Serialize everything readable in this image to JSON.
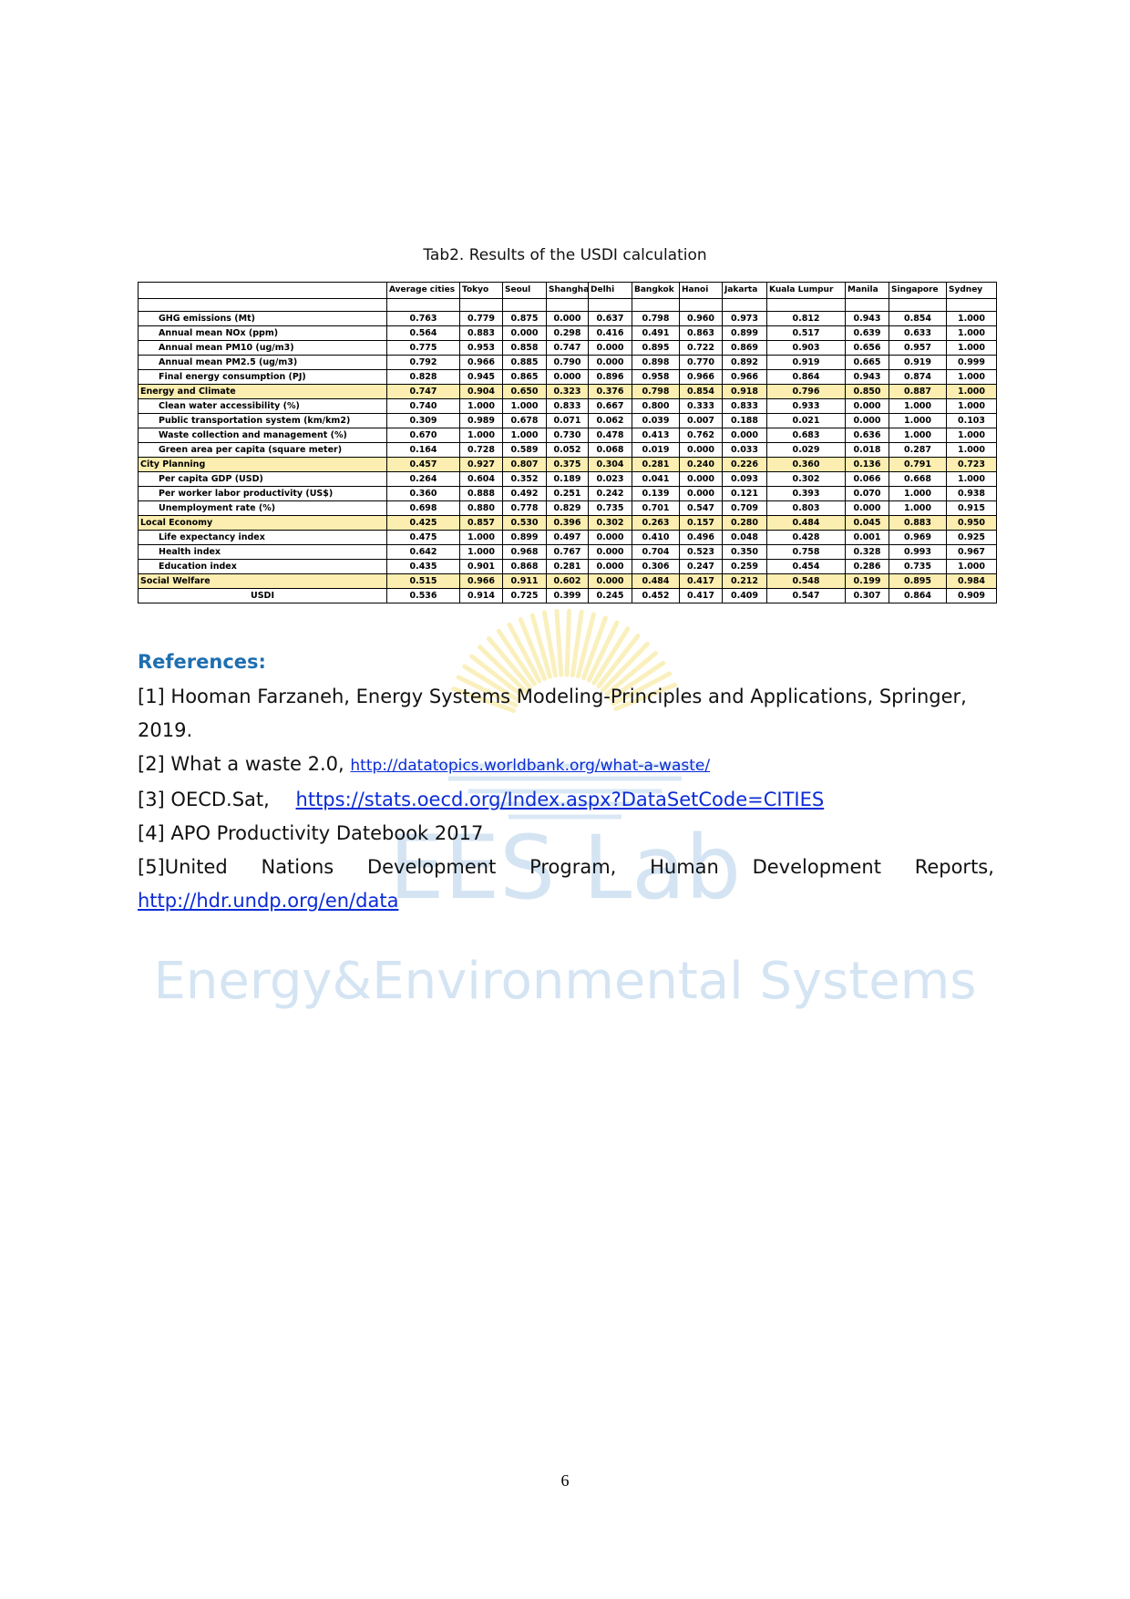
{
  "caption": "Tab2. Results of the USDI calculation",
  "table": {
    "headers": [
      "",
      "Average cities",
      "Tokyo",
      "Seoul",
      "Shanghai",
      "Delhi",
      "Bangkok",
      "Hanoi",
      "Jakarta",
      "Kuala Lumpur",
      "Manila",
      "Singapore",
      "Sydney"
    ],
    "rows": [
      {
        "type": "blank",
        "label": "",
        "values": [
          "",
          "",
          "",
          "",
          "",
          "",
          "",
          "",
          "",
          "",
          "",
          ""
        ]
      },
      {
        "type": "indicator",
        "label": "GHG emissions (Mt)",
        "values": [
          "0.763",
          "0.779",
          "0.875",
          "0.000",
          "0.637",
          "0.798",
          "0.960",
          "0.973",
          "0.812",
          "0.943",
          "0.854",
          "1.000"
        ]
      },
      {
        "type": "indicator",
        "label": "Annual mean NOx (ppm)",
        "values": [
          "0.564",
          "0.883",
          "0.000",
          "0.298",
          "0.416",
          "0.491",
          "0.863",
          "0.899",
          "0.517",
          "0.639",
          "0.633",
          "1.000"
        ]
      },
      {
        "type": "indicator",
        "label": "Annual mean PM10 (ug/m3)",
        "values": [
          "0.775",
          "0.953",
          "0.858",
          "0.747",
          "0.000",
          "0.895",
          "0.722",
          "0.869",
          "0.903",
          "0.656",
          "0.957",
          "1.000"
        ]
      },
      {
        "type": "indicator",
        "label": "Annual mean PM2.5 (ug/m3)",
        "values": [
          "0.792",
          "0.966",
          "0.885",
          "0.790",
          "0.000",
          "0.898",
          "0.770",
          "0.892",
          "0.919",
          "0.665",
          "0.919",
          "0.999"
        ]
      },
      {
        "type": "indicator",
        "label": "Final energy consumption (PJ)",
        "values": [
          "0.828",
          "0.945",
          "0.865",
          "0.000",
          "0.896",
          "0.958",
          "0.966",
          "0.966",
          "0.864",
          "0.943",
          "0.874",
          "1.000"
        ]
      },
      {
        "type": "category",
        "label": "Energy and Climate",
        "values": [
          "0.747",
          "0.904",
          "0.650",
          "0.323",
          "0.376",
          "0.798",
          "0.854",
          "0.918",
          "0.796",
          "0.850",
          "0.887",
          "1.000"
        ]
      },
      {
        "type": "indicator",
        "label": "Clean water accessibility (%)",
        "values": [
          "0.740",
          "1.000",
          "1.000",
          "0.833",
          "0.667",
          "0.800",
          "0.333",
          "0.833",
          "0.933",
          "0.000",
          "1.000",
          "1.000"
        ]
      },
      {
        "type": "indicator",
        "label": "Public transportation system (km/km2)",
        "values": [
          "0.309",
          "0.989",
          "0.678",
          "0.071",
          "0.062",
          "0.039",
          "0.007",
          "0.188",
          "0.021",
          "0.000",
          "1.000",
          "0.103"
        ]
      },
      {
        "type": "indicator",
        "label": "Waste collection and management (%)",
        "values": [
          "0.670",
          "1.000",
          "1.000",
          "0.730",
          "0.478",
          "0.413",
          "0.762",
          "0.000",
          "0.683",
          "0.636",
          "1.000",
          "1.000"
        ]
      },
      {
        "type": "indicator",
        "label": "Green area per capita (square meter)",
        "values": [
          "0.164",
          "0.728",
          "0.589",
          "0.052",
          "0.068",
          "0.019",
          "0.000",
          "0.033",
          "0.029",
          "0.018",
          "0.287",
          "1.000"
        ]
      },
      {
        "type": "category",
        "label": "City Planning",
        "values": [
          "0.457",
          "0.927",
          "0.807",
          "0.375",
          "0.304",
          "0.281",
          "0.240",
          "0.226",
          "0.360",
          "0.136",
          "0.791",
          "0.723"
        ]
      },
      {
        "type": "indicator",
        "label": "Per capita GDP (USD)",
        "values": [
          "0.264",
          "0.604",
          "0.352",
          "0.189",
          "0.023",
          "0.041",
          "0.000",
          "0.093",
          "0.302",
          "0.066",
          "0.668",
          "1.000"
        ]
      },
      {
        "type": "indicator",
        "label": "Per worker labor productivity (US$)",
        "values": [
          "0.360",
          "0.888",
          "0.492",
          "0.251",
          "0.242",
          "0.139",
          "0.000",
          "0.121",
          "0.393",
          "0.070",
          "1.000",
          "0.938"
        ]
      },
      {
        "type": "indicator",
        "label": "Unemployment rate (%)",
        "values": [
          "0.698",
          "0.880",
          "0.778",
          "0.829",
          "0.735",
          "0.701",
          "0.547",
          "0.709",
          "0.803",
          "0.000",
          "1.000",
          "0.915"
        ]
      },
      {
        "type": "category",
        "label": "Local Economy",
        "values": [
          "0.425",
          "0.857",
          "0.530",
          "0.396",
          "0.302",
          "0.263",
          "0.157",
          "0.280",
          "0.484",
          "0.045",
          "0.883",
          "0.950"
        ]
      },
      {
        "type": "indicator",
        "label": "Life expectancy index",
        "values": [
          "0.475",
          "1.000",
          "0.899",
          "0.497",
          "0.000",
          "0.410",
          "0.496",
          "0.048",
          "0.428",
          "0.001",
          "0.969",
          "0.925"
        ]
      },
      {
        "type": "indicator",
        "label": "Health index",
        "values": [
          "0.642",
          "1.000",
          "0.968",
          "0.767",
          "0.000",
          "0.704",
          "0.523",
          "0.350",
          "0.758",
          "0.328",
          "0.993",
          "0.967"
        ]
      },
      {
        "type": "indicator",
        "label": "Education index",
        "values": [
          "0.435",
          "0.901",
          "0.868",
          "0.281",
          "0.000",
          "0.306",
          "0.247",
          "0.259",
          "0.454",
          "0.286",
          "0.735",
          "1.000"
        ]
      },
      {
        "type": "category",
        "label": "Social Welfare",
        "values": [
          "0.515",
          "0.966",
          "0.911",
          "0.602",
          "0.000",
          "0.484",
          "0.417",
          "0.212",
          "0.548",
          "0.199",
          "0.895",
          "0.984"
        ]
      },
      {
        "type": "usdi",
        "label": "USDI",
        "values": [
          "0.536",
          "0.914",
          "0.725",
          "0.399",
          "0.245",
          "0.452",
          "0.417",
          "0.409",
          "0.547",
          "0.307",
          "0.864",
          "0.909"
        ]
      }
    ]
  },
  "references": {
    "heading": "References:",
    "ref1": "[1] Hooman Farzaneh, Energy Systems Modeling-Principles and Applications, Springer, 2019.",
    "ref2_prefix": "[2] What a waste 2.0, ",
    "ref2_link": "http://datatopics.worldbank.org/what-a-waste/",
    "ref3_prefix": "[3] OECD.Sat,",
    "ref3_link": "https://stats.oecd.org/Index.aspx?DataSetCode=CITIES",
    "ref4": "[4] APO Productivity Datebook 2017",
    "ref5_words": [
      "[5]United",
      "Nations",
      "Development",
      "Program,",
      "Human",
      "Development",
      "Reports,"
    ],
    "ref5_link": "http://hdr.undp.org/en/data"
  },
  "watermark": {
    "title": "EES Lab",
    "subtitle": "Energy&Environmental Systems",
    "sun_color": "#f6e48a",
    "text_color": "#cfe0f1"
  },
  "page_number": "6"
}
